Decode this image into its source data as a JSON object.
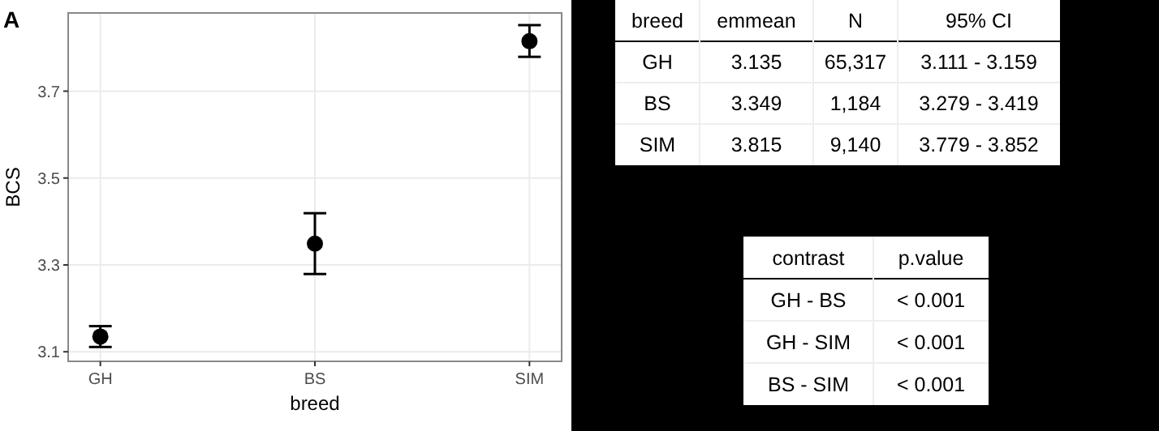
{
  "chart_data": [
    {
      "type": "scatter",
      "title": "A",
      "xlabel": "breed",
      "ylabel": "BCS",
      "categories": [
        "GH",
        "BS",
        "SIM"
      ],
      "values": [
        3.135,
        3.349,
        3.815
      ],
      "errors": [
        [
          3.111,
          3.159
        ],
        [
          3.279,
          3.419
        ],
        [
          3.779,
          3.852
        ]
      ],
      "color": "#000000",
      "marker": "circle",
      "ylim": [
        3.078,
        3.88
      ],
      "yticks": [
        3.1,
        3.3,
        3.5,
        3.7
      ],
      "grid": true
    },
    {
      "type": "other",
      "annotations": [
        "breed",
        "emmean",
        "N",
        "95% CI",
        "GH",
        "3.135",
        "65,317",
        "3.111 - 3.159",
        "BS",
        "3.349",
        "1,184",
        "3.279 - 3.419",
        "SIM",
        "3.815",
        "9,140",
        "3.779 - 3.852"
      ]
    },
    {
      "type": "other",
      "annotations": [
        "contrast",
        "p.value",
        "GH - BS",
        "< 0.001",
        "GH - SIM",
        "< 0.001",
        "BS - SIM",
        "< 0.001"
      ]
    }
  ]
}
